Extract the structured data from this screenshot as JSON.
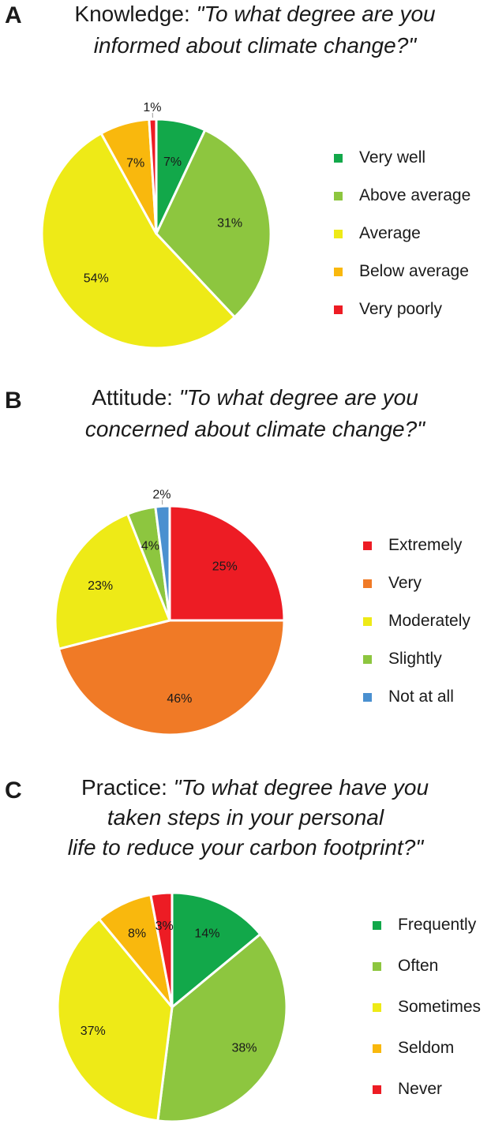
{
  "chart_data": [
    {
      "type": "pie",
      "panel": "A",
      "title_lead": "Knowledge: ",
      "title_q1": "\"To what degree are you",
      "title_q2": "informed about climate change?\"",
      "title_q3": "",
      "legend_position": "right",
      "slices": [
        {
          "label": "Very well",
          "value": 7,
          "value_label": "7%",
          "color": "#12a84a"
        },
        {
          "label": "Above average",
          "value": 31,
          "value_label": "31%",
          "color": "#8dc63f"
        },
        {
          "label": "Average",
          "value": 54,
          "value_label": "54%",
          "color": "#eeea17"
        },
        {
          "label": "Below average",
          "value": 7,
          "value_label": "7%",
          "color": "#f9b80d"
        },
        {
          "label": "Very poorly",
          "value": 1,
          "value_label": "1%",
          "color": "#ed1c24"
        }
      ]
    },
    {
      "type": "pie",
      "panel": "B",
      "title_lead": "Attitude: ",
      "title_q1": "\"To what degree are you",
      "title_q2": "concerned about climate change?\"",
      "title_q3": "",
      "legend_position": "right",
      "slices": [
        {
          "label": "Extremely",
          "value": 25,
          "value_label": "25%",
          "color": "#ed1c24"
        },
        {
          "label": "Very",
          "value": 46,
          "value_label": "46%",
          "color": "#f07a26"
        },
        {
          "label": "Moderately",
          "value": 23,
          "value_label": "23%",
          "color": "#eeea17"
        },
        {
          "label": "Slightly",
          "value": 4,
          "value_label": "4%",
          "color": "#8dc63f"
        },
        {
          "label": "Not at all",
          "value": 2,
          "value_label": "2%",
          "color": "#4a90d0"
        }
      ]
    },
    {
      "type": "pie",
      "panel": "C",
      "title_lead": "Practice: ",
      "title_q1": "\"To what degree have you",
      "title_q2": "taken steps in your personal",
      "title_q3": "life to reduce your carbon footprint?\"",
      "legend_position": "right",
      "slices": [
        {
          "label": "Frequently",
          "value": 14,
          "value_label": "14%",
          "color": "#12a84a"
        },
        {
          "label": "Often",
          "value": 38,
          "value_label": "38%",
          "color": "#8dc63f"
        },
        {
          "label": "Sometimes",
          "value": 37,
          "value_label": "37%",
          "color": "#eeea17"
        },
        {
          "label": "Seldom",
          "value": 8,
          "value_label": "8%",
          "color": "#f9b80d"
        },
        {
          "label": "Never",
          "value": 3,
          "value_label": "3%",
          "color": "#ed1c24"
        }
      ]
    }
  ]
}
